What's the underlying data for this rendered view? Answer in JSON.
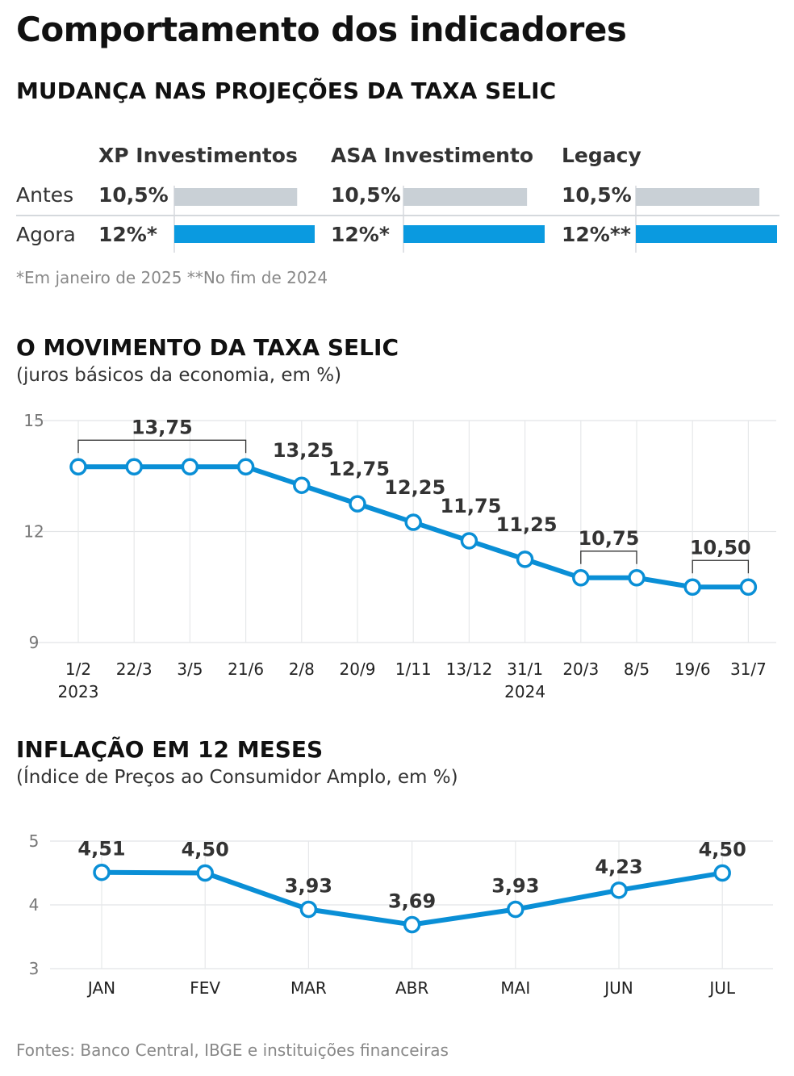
{
  "title": "Comportamento dos indicadores",
  "projections": {
    "title": "MUDANÇA NAS PROJEÇÕES DA TAXA SELIC",
    "row_labels": [
      "Antes",
      "Agora"
    ],
    "institutions": [
      {
        "name": "XP Investimentos",
        "before_label": "10,5%",
        "after_label": "12%*",
        "before": 10.5,
        "after": 12
      },
      {
        "name": "ASA Investimento",
        "before_label": "10,5%",
        "after_label": "12%*",
        "before": 10.5,
        "after": 12
      },
      {
        "name": "Legacy",
        "before_label": "10,5%",
        "after_label": "12%**",
        "before": 10.5,
        "after": 12
      }
    ],
    "note": "*Em janeiro de 2025  **No fim de 2024",
    "colors": {
      "before": "#c9d0d6",
      "after": "#0a9ae0"
    }
  },
  "selic": {
    "title": "O MOVIMENTO DA TAXA SELIC",
    "subtitle": "(juros básicos da economia, em %)"
  },
  "ipca": {
    "title": "INFLAÇÃO EM 12 MESES",
    "subtitle": "(Índice de Preços ao Consumidor Amplo, em %)"
  },
  "source": "Fontes: Banco Central, IBGE e instituições financeiras",
  "chart_data": [
    {
      "type": "bar",
      "categories": [
        "XP Investimentos",
        "ASA Investimento",
        "Legacy"
      ],
      "series": [
        {
          "name": "Antes",
          "values": [
            10.5,
            10.5,
            10.5
          ],
          "labels": [
            "10,5%",
            "10,5%",
            "10,5%"
          ]
        },
        {
          "name": "Agora",
          "values": [
            12,
            12,
            12
          ],
          "labels": [
            "12%*",
            "12%*",
            "12%**"
          ]
        }
      ],
      "title": "MUDANÇA NAS PROJEÇÕES DA TAXA SELIC",
      "orientation": "horizontal",
      "colors": [
        "#c9d0d6",
        "#0a9ae0"
      ]
    },
    {
      "type": "line",
      "title": "O MOVIMENTO DA TAXA SELIC",
      "subtitle": "(juros básicos da economia, em %)",
      "x": [
        "1/2",
        "22/3",
        "3/5",
        "21/6",
        "2/8",
        "20/9",
        "1/11",
        "13/12",
        "31/1",
        "20/3",
        "8/5",
        "19/6",
        "31/7"
      ],
      "year_labels": [
        {
          "index": 0,
          "label": "2023"
        },
        {
          "index": 8,
          "label": "2024"
        }
      ],
      "values": [
        13.75,
        13.75,
        13.75,
        13.75,
        13.25,
        12.75,
        12.25,
        11.75,
        11.25,
        10.75,
        10.75,
        10.5,
        10.5
      ],
      "annotations": [
        {
          "label": "13,75",
          "from": 0,
          "to": 3
        },
        {
          "label": "13,25",
          "index": 4
        },
        {
          "label": "12,75",
          "index": 5
        },
        {
          "label": "12,25",
          "index": 6
        },
        {
          "label": "11,75",
          "index": 7
        },
        {
          "label": "11,25",
          "index": 8
        },
        {
          "label": "10,75",
          "from": 9,
          "to": 10
        },
        {
          "label": "10,50",
          "from": 11,
          "to": 12
        }
      ],
      "yticks": [
        9,
        12,
        15
      ],
      "ytick_labels": [
        "9",
        "12",
        "15"
      ],
      "ylim": [
        9,
        15
      ],
      "grid": true,
      "color": "#0a8fd6"
    },
    {
      "type": "line",
      "title": "INFLAÇÃO EM 12 MESES",
      "subtitle": "(Índice de Preços ao Consumidor Amplo, em %)",
      "x": [
        "JAN",
        "FEV",
        "MAR",
        "ABR",
        "MAI",
        "JUN",
        "JUL"
      ],
      "values": [
        4.51,
        4.5,
        3.93,
        3.69,
        3.93,
        4.23,
        4.5
      ],
      "labels": [
        "4,51",
        "4,50",
        "3,93",
        "3,69",
        "3,93",
        "4,23",
        "4,50"
      ],
      "yticks": [
        3,
        4,
        5
      ],
      "ytick_labels": [
        "3",
        "4",
        "5"
      ],
      "ylim": [
        3,
        5
      ],
      "grid": true,
      "color": "#0a8fd6"
    }
  ]
}
